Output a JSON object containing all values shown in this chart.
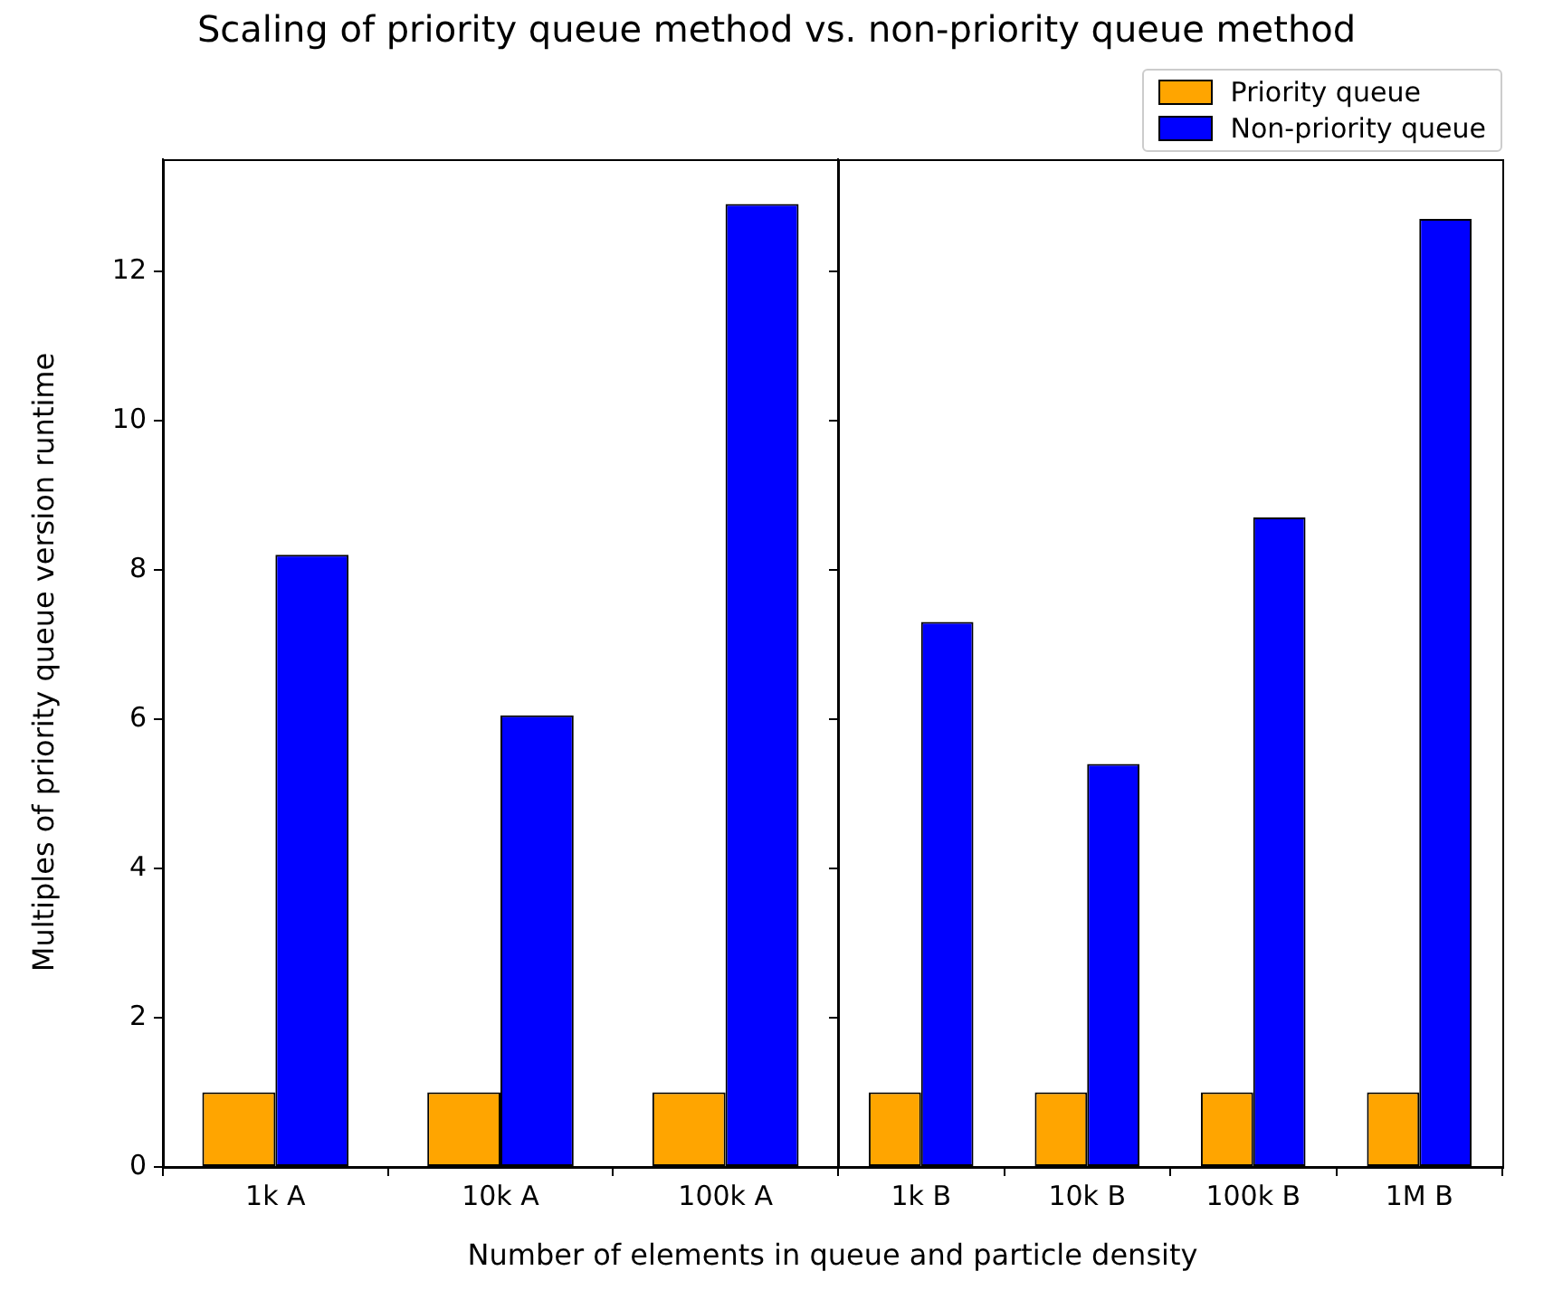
{
  "chart_data": [
    {
      "type": "bar",
      "title": "Scaling of priority queue method vs. non-priority queue method",
      "xlabel": "Number of elements in queue and particle density",
      "ylabel": "Multiples of priority queue version runtime",
      "categories": [
        "1k A",
        "10k A",
        "100k A"
      ],
      "series": [
        {
          "color": "#ffa500",
          "values": [
            1,
            1,
            1
          ]
        },
        {
          "color": "#0000ff",
          "values": [
            8.2,
            6.05,
            12.9
          ]
        }
      ],
      "ylim": [
        0,
        13.5
      ],
      "yticks": [
        0,
        2,
        4,
        6,
        8,
        10,
        12
      ]
    },
    {
      "type": "bar",
      "categories": [
        "1k B",
        "10k B",
        "100k B",
        "1M B"
      ],
      "series": [
        {
          "name": "Priority queue",
          "color": "#ffa500",
          "values": [
            1,
            1,
            1,
            1
          ]
        },
        {
          "name": "Non-priority queue",
          "color": "#0000ff",
          "values": [
            7.3,
            5.4,
            8.7,
            12.7
          ]
        }
      ],
      "ylim": [
        0,
        13.5
      ],
      "yticks": [
        0,
        2,
        4,
        6,
        8,
        10,
        12
      ],
      "tick_labels": "x",
      "legend": "top right"
    }
  ]
}
